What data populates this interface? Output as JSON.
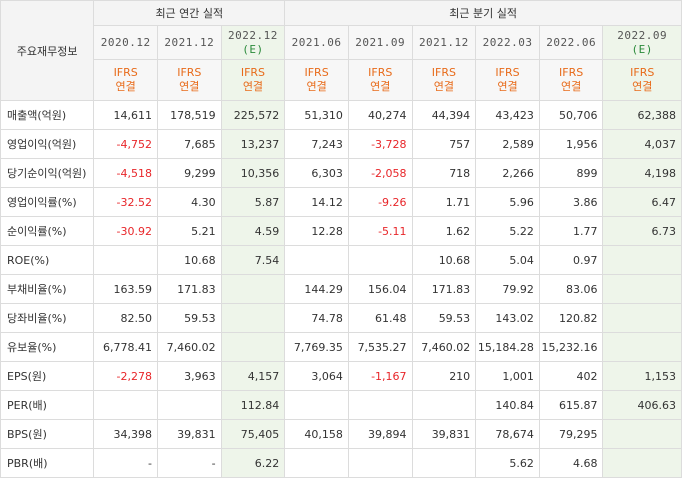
{
  "header": {
    "row_label": "주요재무정보",
    "annual_group": "최근 연간 실적",
    "quarter_group": "최근 분기 실적",
    "ifrs_label": "IFRS",
    "ifrs_sub": "연결",
    "est_suffix": "(E)"
  },
  "periods": [
    {
      "label": "2020.12",
      "est": false
    },
    {
      "label": "2021.12",
      "est": false
    },
    {
      "label": "2022.12",
      "est": true
    },
    {
      "label": "2021.06",
      "est": false
    },
    {
      "label": "2021.09",
      "est": false
    },
    {
      "label": "2021.12",
      "est": false
    },
    {
      "label": "2022.03",
      "est": false
    },
    {
      "label": "2022.06",
      "est": false
    },
    {
      "label": "2022.09",
      "est": true
    }
  ],
  "rows": [
    {
      "label": "매출액(억원)",
      "values": [
        "14,611",
        "178,519",
        "225,572",
        "51,310",
        "40,274",
        "44,394",
        "43,423",
        "50,706",
        "62,388"
      ]
    },
    {
      "label": "영업이익(억원)",
      "values": [
        "-4,752",
        "7,685",
        "13,237",
        "7,243",
        "-3,728",
        "757",
        "2,589",
        "1,956",
        "4,037"
      ]
    },
    {
      "label": "당기순이익(억원)",
      "values": [
        "-4,518",
        "9,299",
        "10,356",
        "6,303",
        "-2,058",
        "718",
        "2,266",
        "899",
        "4,198"
      ]
    },
    {
      "label": "영업이익률(%)",
      "values": [
        "-32.52",
        "4.30",
        "5.87",
        "14.12",
        "-9.26",
        "1.71",
        "5.96",
        "3.86",
        "6.47"
      ]
    },
    {
      "label": "순이익률(%)",
      "values": [
        "-30.92",
        "5.21",
        "4.59",
        "12.28",
        "-5.11",
        "1.62",
        "5.22",
        "1.77",
        "6.73"
      ]
    },
    {
      "label": "ROE(%)",
      "values": [
        "",
        "10.68",
        "7.54",
        "",
        "",
        "10.68",
        "5.04",
        "0.97",
        ""
      ]
    },
    {
      "label": "부채비율(%)",
      "values": [
        "163.59",
        "171.83",
        "",
        "144.29",
        "156.04",
        "171.83",
        "79.92",
        "83.06",
        ""
      ]
    },
    {
      "label": "당좌비율(%)",
      "values": [
        "82.50",
        "59.53",
        "",
        "74.78",
        "61.48",
        "59.53",
        "143.02",
        "120.82",
        ""
      ]
    },
    {
      "label": "유보율(%)",
      "values": [
        "6,778.41",
        "7,460.02",
        "",
        "7,769.35",
        "7,535.27",
        "7,460.02",
        "15,184.28",
        "15,232.16",
        ""
      ]
    },
    {
      "label": "EPS(원)",
      "values": [
        "-2,278",
        "3,963",
        "4,157",
        "3,064",
        "-1,167",
        "210",
        "1,001",
        "402",
        "1,153"
      ]
    },
    {
      "label": "PER(배)",
      "values": [
        "",
        "",
        "112.84",
        "",
        "",
        "",
        "140.84",
        "615.87",
        "406.63"
      ]
    },
    {
      "label": "BPS(원)",
      "values": [
        "34,398",
        "39,831",
        "75,405",
        "40,158",
        "39,894",
        "39,831",
        "78,674",
        "79,295",
        ""
      ]
    },
    {
      "label": "PBR(배)",
      "values": [
        "-",
        "-",
        "6.22",
        "",
        "",
        "",
        "5.62",
        "4.68",
        ""
      ]
    }
  ]
}
